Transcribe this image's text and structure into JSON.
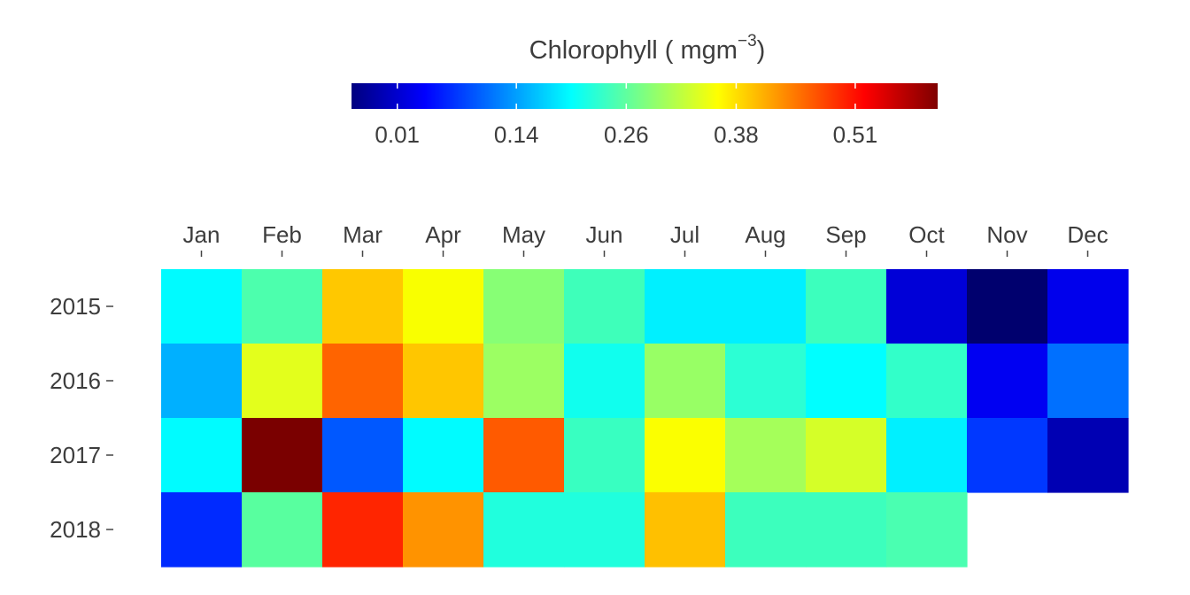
{
  "chart_data": {
    "type": "heatmap",
    "legend": {
      "title": "Chlorophyll ( mgm",
      "title_superscript": "−3",
      "title_close": ")",
      "tick_labels": [
        "0.01",
        "0.14",
        "0.26",
        "0.38",
        "0.51"
      ],
      "tick_values": [
        0.01,
        0.14,
        0.26,
        0.38,
        0.51
      ],
      "range": [
        -0.04,
        0.6
      ],
      "colormap": [
        "#00007f",
        "#0000ff",
        "#007fff",
        "#00ffff",
        "#7fff7f",
        "#ffff00",
        "#ff7f00",
        "#ff0000",
        "#7f0000"
      ],
      "placement": "top"
    },
    "x_categories": [
      "Jan",
      "Feb",
      "Mar",
      "Apr",
      "May",
      "Jun",
      "Jul",
      "Aug",
      "Sep",
      "Oct",
      "Nov",
      "Dec"
    ],
    "y_categories": [
      "2015",
      "2016",
      "2017",
      "2018"
    ],
    "values": [
      [
        0.2,
        0.27,
        0.43,
        0.37,
        0.29,
        0.25,
        0.2,
        0.2,
        0.25,
        0.0,
        -0.04,
        0.0
      ],
      [
        0.15,
        0.35,
        0.47,
        0.42,
        0.31,
        0.23,
        0.3,
        0.24,
        0.21,
        0.25,
        0.01,
        0.11
      ],
      [
        0.19,
        0.6,
        0.08,
        0.19,
        0.47,
        0.25,
        0.37,
        0.32,
        0.34,
        0.2,
        0.06,
        -0.01
      ],
      [
        0.03,
        0.27,
        0.51,
        0.45,
        0.23,
        0.23,
        0.43,
        0.26,
        0.26,
        0.26,
        null,
        null
      ]
    ],
    "colors": [
      [
        "#00fbff",
        "#4cffad",
        "#ffc800",
        "#f9ff00",
        "#87ff75",
        "#3effba",
        "#00f0ff",
        "#00f0ff",
        "#3cffbd",
        "#0000d7",
        "#00006e",
        "#0000ec"
      ],
      [
        "#00b0ff",
        "#e3ff1c",
        "#ff6400",
        "#ffc600",
        "#9cff63",
        "#10ffee",
        "#98ff65",
        "#2cffd4",
        "#00ffff",
        "#32ffc9",
        "#0000f2",
        "#0070ff"
      ],
      [
        "#00fcff",
        "#7a0000",
        "#0058ff",
        "#00fcff",
        "#ff5a00",
        "#38ffc1",
        "#fbff00",
        "#a5ff5a",
        "#d5ff28",
        "#00f0ff",
        "#0038ff",
        "#0000b3"
      ],
      [
        "#002aff",
        "#58ff9f",
        "#ff2500",
        "#ff9300",
        "#20ffdd",
        "#20ffdd",
        "#ffc000",
        "#3cffbd",
        "#3cffbd",
        "#4affb1",
        null,
        null
      ]
    ],
    "grid": false,
    "xlabel": "",
    "ylabel": ""
  }
}
